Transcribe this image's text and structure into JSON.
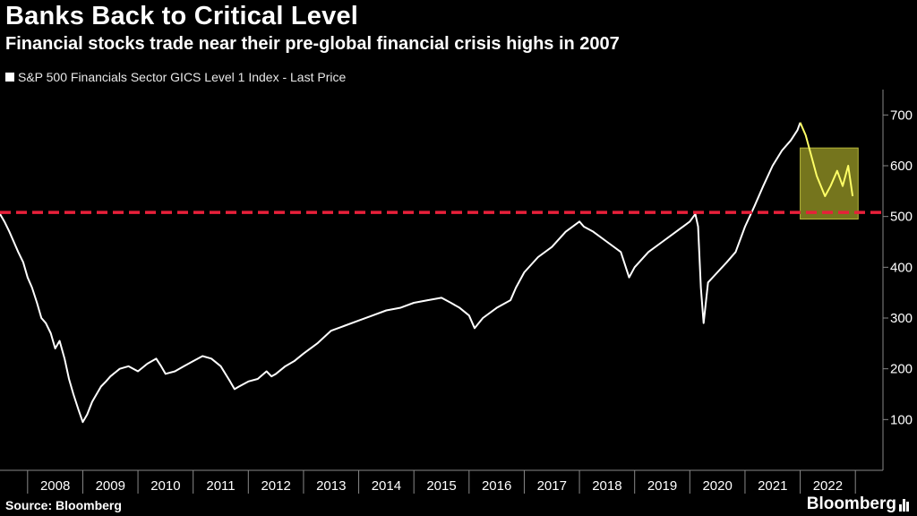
{
  "chart_data": {
    "type": "line",
    "title": "Banks Back to Critical Level",
    "subtitle": "Financial stocks trade near their pre-global financial crisis highs in 2007",
    "legend": [
      "S&P 500 Financials Sector GICS Level 1 Index - Last Price"
    ],
    "xlabel": "",
    "ylabel": "",
    "ylim": [
      0,
      750
    ],
    "yticks": [
      100,
      200,
      300,
      400,
      500,
      600,
      700
    ],
    "xlim": [
      2007.5,
      2023.5
    ],
    "xtick_labels": [
      "2008",
      "2009",
      "2010",
      "2011",
      "2012",
      "2013",
      "2014",
      "2015",
      "2016",
      "2017",
      "2018",
      "2019",
      "2020",
      "2021",
      "2022"
    ],
    "series": [
      {
        "name": "S&P 500 Financials Sector GICS Level 1 Index - Last Price",
        "x": [
          2007.5,
          2007.58,
          2007.67,
          2007.75,
          2007.83,
          2007.92,
          2008.0,
          2008.08,
          2008.17,
          2008.25,
          2008.33,
          2008.42,
          2008.5,
          2008.58,
          2008.67,
          2008.75,
          2008.83,
          2008.92,
          2009.0,
          2009.08,
          2009.17,
          2009.25,
          2009.33,
          2009.42,
          2009.5,
          2009.67,
          2009.83,
          2010.0,
          2010.17,
          2010.33,
          2010.42,
          2010.5,
          2010.67,
          2010.83,
          2011.0,
          2011.17,
          2011.33,
          2011.5,
          2011.67,
          2011.75,
          2011.83,
          2012.0,
          2012.17,
          2012.33,
          2012.42,
          2012.5,
          2012.67,
          2012.83,
          2013.0,
          2013.25,
          2013.5,
          2013.75,
          2014.0,
          2014.25,
          2014.5,
          2014.75,
          2015.0,
          2015.25,
          2015.5,
          2015.67,
          2015.83,
          2016.0,
          2016.1,
          2016.25,
          2016.5,
          2016.75,
          2016.85,
          2017.0,
          2017.25,
          2017.5,
          2017.75,
          2018.0,
          2018.08,
          2018.25,
          2018.5,
          2018.75,
          2018.9,
          2019.0,
          2019.25,
          2019.5,
          2019.75,
          2020.0,
          2020.1,
          2020.15,
          2020.2,
          2020.25,
          2020.33,
          2020.5,
          2020.67,
          2020.83,
          2021.0,
          2021.17,
          2021.33,
          2021.5,
          2021.67,
          2021.83,
          2021.95,
          2022.0,
          2022.1,
          2022.2,
          2022.3,
          2022.45,
          2022.55,
          2022.67,
          2022.77,
          2022.87,
          2022.95
        ],
        "values": [
          505,
          490,
          470,
          450,
          430,
          410,
          380,
          360,
          330,
          300,
          290,
          270,
          240,
          255,
          220,
          180,
          150,
          120,
          95,
          110,
          135,
          150,
          165,
          175,
          185,
          200,
          205,
          195,
          210,
          220,
          205,
          190,
          195,
          205,
          215,
          225,
          220,
          205,
          175,
          160,
          165,
          175,
          180,
          195,
          185,
          190,
          205,
          215,
          230,
          250,
          275,
          285,
          295,
          305,
          315,
          320,
          330,
          335,
          340,
          330,
          320,
          305,
          280,
          300,
          320,
          335,
          360,
          390,
          420,
          440,
          470,
          490,
          480,
          470,
          450,
          430,
          380,
          400,
          430,
          450,
          470,
          490,
          505,
          480,
          360,
          290,
          370,
          390,
          410,
          430,
          480,
          520,
          560,
          600,
          630,
          650,
          670,
          685,
          660,
          620,
          580,
          540,
          560,
          590,
          560,
          600,
          540
        ]
      }
    ],
    "threshold": {
      "value": 508,
      "label": ""
    },
    "highlight": {
      "x_start": 2022.0,
      "x_end": 2023.05,
      "y_low": 495,
      "y_high": 635
    },
    "colors": {
      "line": "#ffffff",
      "highlight_line": "#ffff66",
      "threshold": "#e8203a",
      "box": "#8a8a22",
      "grid": "#555555"
    }
  },
  "footer": {
    "source": "Source: Bloomberg",
    "brand": "Bloomberg"
  }
}
